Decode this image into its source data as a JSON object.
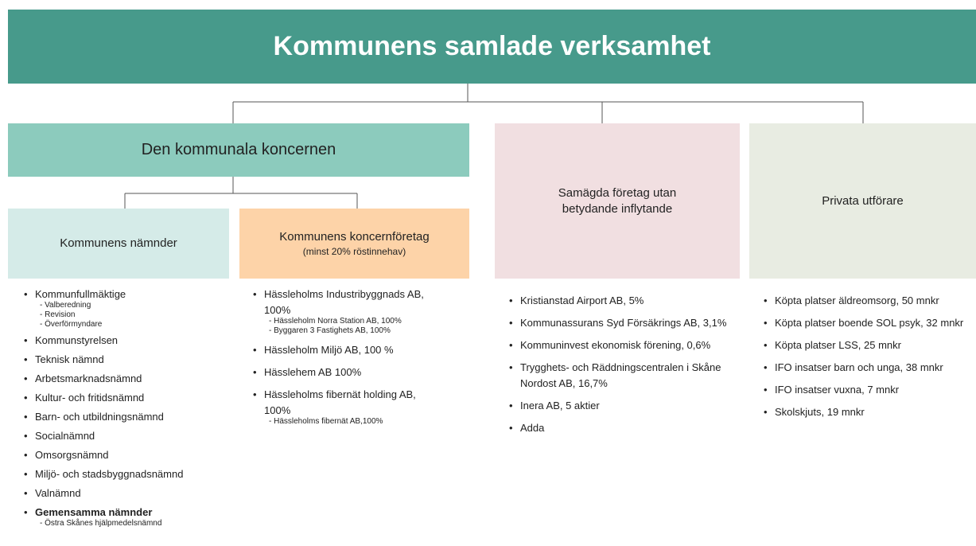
{
  "title": "Kommunens samlade verksamhet",
  "group": {
    "title": "Den kommunala koncernen"
  },
  "columns": [
    {
      "title": "Kommunens nämnder",
      "items": [
        {
          "text": "Kommunfullmäktige",
          "sub": [
            "Valberedning",
            "Revision",
            "Överförmyndare"
          ]
        },
        {
          "text": "Kommunstyrelsen"
        },
        {
          "text": "Teknisk nämnd"
        },
        {
          "text": "Arbetsmarknadsnämnd"
        },
        {
          "text": "Kultur- och fritidsnämnd"
        },
        {
          "text": "Barn- och utbildningsnämnd"
        },
        {
          "text": "Socialnämnd"
        },
        {
          "text": "Omsorgsnämnd"
        },
        {
          "text": "Miljö- och stadsbyggnadsnämnd"
        },
        {
          "text": "Valnämnd"
        },
        {
          "text": "Gemensamma nämnder",
          "sub": [
            "Östra Skånes hjälpmedelsnämnd"
          ]
        }
      ]
    },
    {
      "title": "Kommunens koncernföretag",
      "subtitle": "(minst 20% röstinnehav)",
      "items": [
        {
          "text": "Hässleholms Industribyggnads AB, 100%",
          "sub": [
            "Hässleholm Norra Station AB, 100%",
            "Byggaren 3 Fastighets AB, 100%"
          ]
        },
        {
          "text": "Hässleholm Miljö AB, 100 %"
        },
        {
          "text": "Hässlehem AB 100%"
        },
        {
          "text": "Hässleholms fibernät holding AB, 100%",
          "sub": [
            "Hässleholms fibernät AB,100%"
          ]
        }
      ]
    },
    {
      "title": "Samägda företag utan betydande inflytande",
      "items": [
        {
          "text": "Kristianstad Airport AB, 5%"
        },
        {
          "text": "Kommunassurans Syd Försäkrings AB, 3,1%"
        },
        {
          "text": "Kommuninvest ekonomisk förening, 0,6%"
        },
        {
          "text": "Trygghets- och Räddningscentralen i Skåne Nordost AB, 16,7%"
        },
        {
          "text": "Inera AB, 5 aktier"
        },
        {
          "text": "Adda"
        }
      ]
    },
    {
      "title": "Privata utförare",
      "items": [
        {
          "text": "Köpta platser äldreomsorg, 50 mnkr"
        },
        {
          "text": "Köpta platser boende SOL psyk, 32 mnkr"
        },
        {
          "text": "Köpta platser LSS, 25 mnkr"
        },
        {
          "text": "IFO insatser barn och unga, 38 mnkr"
        },
        {
          "text": "IFO insatser vuxna, 7 mnkr"
        },
        {
          "text": "Skolskjuts, 19 mnkr"
        }
      ]
    }
  ]
}
